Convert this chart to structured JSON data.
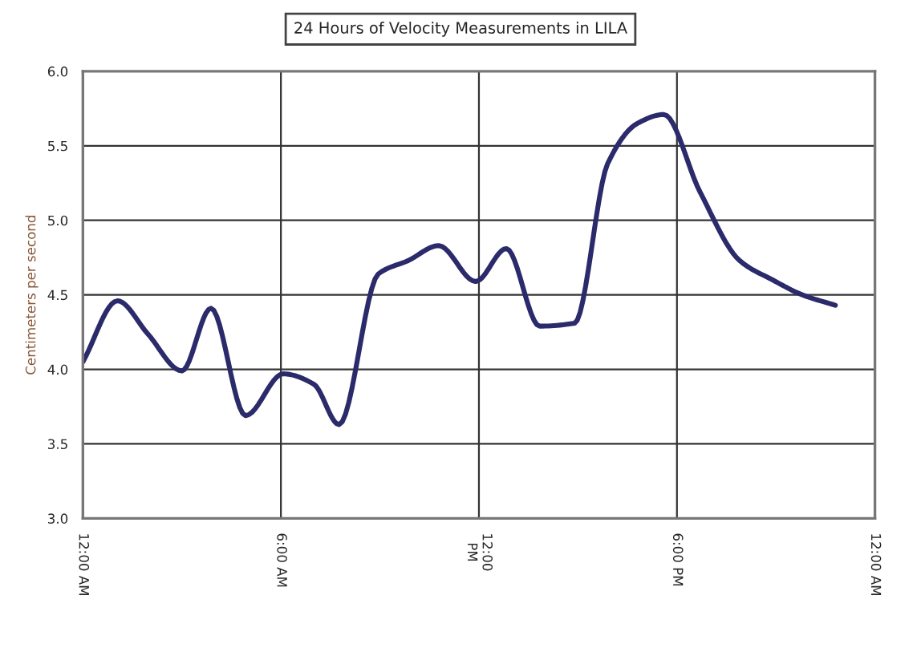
{
  "chart_data": {
    "type": "line",
    "title": "24 Hours of Velocity Measurements in LILA",
    "ylabel": "Centimeters per second",
    "series": [
      {
        "color": "#2b2b6b",
        "x": [
          0,
          1.05,
          1.96,
          3.0,
          3.88,
          4.93,
          6.07,
          7.0,
          7.76,
          8.95,
          9.86,
          10.78,
          11.9,
          12.83,
          13.84,
          14.9,
          15.9,
          16.8,
          17.6,
          18.7,
          19.9,
          20.9,
          21.8,
          22.8
        ],
        "values": [
          4.05,
          4.46,
          4.24,
          3.99,
          4.41,
          3.69,
          3.97,
          3.9,
          3.63,
          4.64,
          4.73,
          4.83,
          4.59,
          4.81,
          4.29,
          4.31,
          5.38,
          5.65,
          5.71,
          5.19,
          4.73,
          4.6,
          4.5,
          4.43
        ]
      }
    ],
    "xlim": [
      0,
      24
    ],
    "xticks": [
      {
        "value": 0,
        "label": "12:00 AM"
      },
      {
        "value": 6,
        "label": "6:00 AM"
      },
      {
        "value": 12,
        "label": "12:00\nPM"
      },
      {
        "value": 18,
        "label": "6:00 PM"
      },
      {
        "value": 24,
        "label": "12:00 AM"
      }
    ],
    "ylim": [
      3.0,
      6.0
    ],
    "yticks": [
      {
        "value": 3.0,
        "label": "3.0"
      },
      {
        "value": 3.5,
        "label": "3.5"
      },
      {
        "value": 4.0,
        "label": "4.0"
      },
      {
        "value": 4.5,
        "label": "4.5"
      },
      {
        "value": 5.0,
        "label": "5.0"
      },
      {
        "value": 5.5,
        "label": "5.5"
      },
      {
        "value": 6.0,
        "label": "6.0"
      }
    ],
    "grid": true
  }
}
